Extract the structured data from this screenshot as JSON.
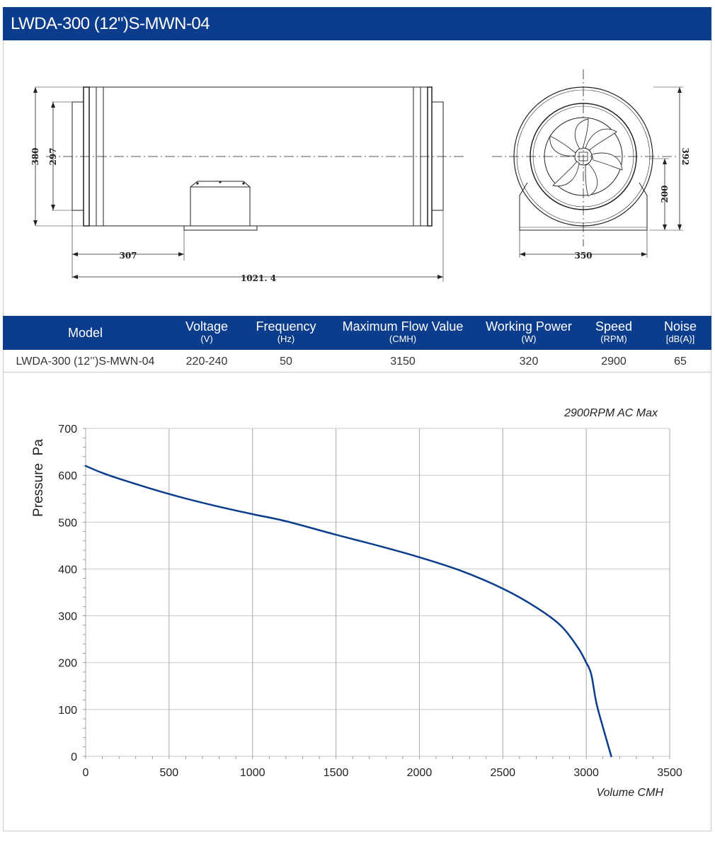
{
  "header": {
    "title": "LWDA-300 (12\")S-MWN-04"
  },
  "drawing": {
    "dimensions": {
      "outer_height": "380",
      "inlet_height": "297",
      "base_offset": "307",
      "total_length": "1021. 4",
      "outer_diameter": "392",
      "base_height": "200",
      "base_width": "350"
    }
  },
  "specs": {
    "columns": [
      {
        "name": "Model",
        "unit": ""
      },
      {
        "name": "Voltage",
        "unit": "(V)"
      },
      {
        "name": "Frequency",
        "unit": "(Hz)"
      },
      {
        "name": "Maximum Flow Value",
        "unit": "(CMH)"
      },
      {
        "name": "Working Power",
        "unit": "(W)"
      },
      {
        "name": "Speed",
        "unit": "(RPM)"
      },
      {
        "name": "Noise",
        "unit": "[dB(A)]"
      }
    ],
    "row": [
      "LWDA-300 (12’’)S-MWN-04",
      "220-240",
      "50",
      "3150",
      "320",
      "2900",
      "65"
    ]
  },
  "chart_data": {
    "type": "line",
    "title": "2900RPM AC Max",
    "xlabel": "Volume CMH",
    "ylabel": "Pressure  Pa",
    "xlim": [
      0,
      3500
    ],
    "ylim": [
      0,
      700
    ],
    "xticks": [
      0,
      500,
      1000,
      1500,
      2000,
      2500,
      3000,
      3500
    ],
    "yticks": [
      0,
      100,
      200,
      300,
      400,
      500,
      600,
      700
    ],
    "grid": true,
    "line_color": "#0b3d8c",
    "series": [
      {
        "x": [
          0,
          100,
          250,
          500,
          750,
          1000,
          1200,
          1500,
          1750,
          2000,
          2250,
          2500,
          2700,
          2850,
          2950,
          3000,
          3030,
          3060,
          3100,
          3150
        ],
        "y": [
          620,
          605,
          587,
          560,
          537,
          517,
          502,
          473,
          450,
          425,
          396,
          358,
          318,
          278,
          232,
          200,
          175,
          115,
          62,
          0
        ]
      }
    ]
  }
}
